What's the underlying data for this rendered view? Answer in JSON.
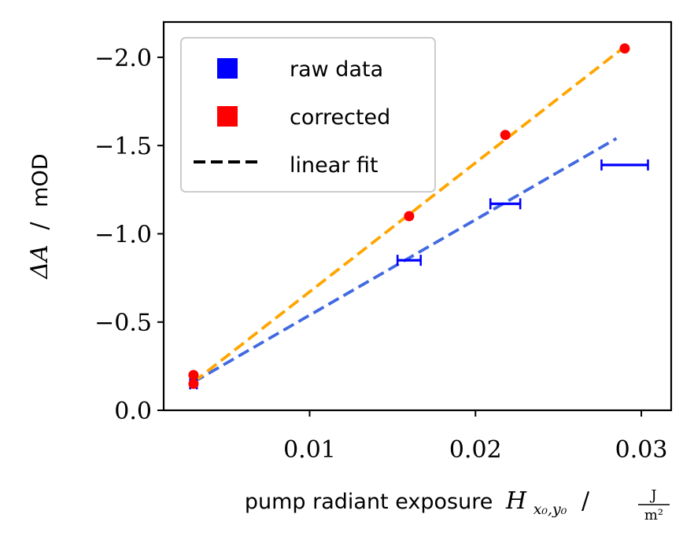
{
  "chart_data": {
    "type": "scatter",
    "xlabel_text": "pump radiant exposure",
    "xlabel_symbol": "H",
    "xlabel_subscript": "x₀,y₀",
    "xlabel_sep": "/",
    "xlabel_unit_num": "J",
    "xlabel_unit_den": "m²",
    "ylabel_symbol": "ΔA",
    "ylabel_sep": "/",
    "ylabel_unit": "mOD",
    "xlim": [
      0.0012,
      0.0318
    ],
    "ylim": [
      0.0,
      -2.2
    ],
    "x_ticks": [
      0.01,
      0.02,
      0.03
    ],
    "x_tick_labels": [
      "0.01",
      "0.02",
      "0.03"
    ],
    "y_ticks": [
      0.0,
      -0.5,
      -1.0,
      -1.5,
      -2.0
    ],
    "y_tick_labels": [
      "0.0",
      "−0.5",
      "−1.0",
      "−1.5",
      "−2.0"
    ],
    "grid": false,
    "legend_position": "top-left",
    "legend": [
      {
        "label": "raw data",
        "marker": "square",
        "color": "#0000ff"
      },
      {
        "label": "corrected",
        "marker": "square",
        "color": "#ff0000"
      },
      {
        "label": "linear fit",
        "marker": "dashed-line",
        "color": "#000000"
      }
    ],
    "series": [
      {
        "name": "raw data",
        "kind": "errorbar-x",
        "color": "#0000ff",
        "points": [
          {
            "x": 0.003,
            "y": -0.15,
            "xerr": 0.0002
          },
          {
            "x": 0.016,
            "y": -0.85,
            "xerr": 0.0007
          },
          {
            "x": 0.0218,
            "y": -1.17,
            "xerr": 0.0009
          },
          {
            "x": 0.029,
            "y": -1.39,
            "xerr": 0.0014
          }
        ]
      },
      {
        "name": "corrected",
        "kind": "scatter",
        "color": "#ff0000",
        "points": [
          {
            "x": 0.003,
            "y": -0.2
          },
          {
            "x": 0.003,
            "y": -0.15
          },
          {
            "x": 0.016,
            "y": -1.1
          },
          {
            "x": 0.0218,
            "y": -1.56
          },
          {
            "x": 0.029,
            "y": -2.05
          }
        ]
      },
      {
        "name": "linear fit",
        "kind": "dashed-line",
        "color": "#4169e1",
        "points": [
          {
            "x": 0.003,
            "y": -0.16
          },
          {
            "x": 0.0285,
            "y": -1.54
          }
        ]
      },
      {
        "name": "linear fit",
        "kind": "dashed-line",
        "color": "#ffa500",
        "points": [
          {
            "x": 0.003,
            "y": -0.16
          },
          {
            "x": 0.029,
            "y": -2.06
          }
        ]
      }
    ]
  }
}
